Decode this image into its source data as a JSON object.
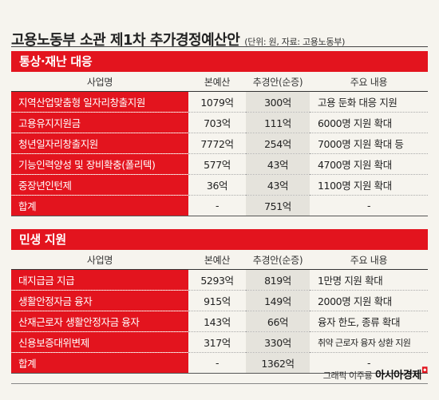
{
  "title": {
    "main": "고용노동부 소관 제1차 추가경정예산안",
    "unit": "(단위: 원, 자료: 고용노동부)"
  },
  "headers": {
    "name": "사업명",
    "base": "본예산",
    "supp": "추경안(순증)",
    "note": "주요 내용"
  },
  "sections": [
    {
      "title": "통상·재난 대응",
      "rows": [
        {
          "name": "지역산업맞춤형 일자리창출지원",
          "base": "1079억",
          "supp": "300억",
          "note": "고용 둔화 대응 지원"
        },
        {
          "name": "고용유지지원금",
          "base": "703억",
          "supp": "111억",
          "note": "6000명 지원 확대"
        },
        {
          "name": "청년일자리창출지원",
          "base": "7772억",
          "supp": "254억",
          "note": "7000명 지원 확대 등"
        },
        {
          "name": "기능인력양성 및 장비확충(폴리텍)",
          "base": "577억",
          "supp": "43억",
          "note": "4700명 지원 확대"
        },
        {
          "name": "중장년인턴제",
          "base": "36억",
          "supp": "43억",
          "note": "1100명 지원 확대"
        }
      ],
      "total": {
        "name": "합계",
        "base": "-",
        "supp": "751억",
        "note": "-"
      }
    },
    {
      "title": "민생 지원",
      "rows": [
        {
          "name": "대지급금 지급",
          "base": "5293억",
          "supp": "819억",
          "note": "1만명 지원 확대"
        },
        {
          "name": "생활안정자금 융자",
          "base": "915억",
          "supp": "149억",
          "note": "2000명 지원 확대"
        },
        {
          "name": "산재근로자 생활안정자금 융자",
          "base": "143억",
          "supp": "66억",
          "note": "융자 한도, 종류 확대"
        },
        {
          "name": "신용보증대위변제",
          "base": "317억",
          "supp": "330억",
          "note": "취약 근로자 융자 상환 지원"
        }
      ],
      "total": {
        "name": "합계",
        "base": "-",
        "supp": "1362억",
        "note": "-"
      }
    }
  ],
  "footer": {
    "credit": "그래픽 이주룡",
    "brand": "아시아경제"
  },
  "colors": {
    "accent": "#e3141e",
    "shade": "#e5e3dc",
    "background": "#f6f4ee"
  }
}
